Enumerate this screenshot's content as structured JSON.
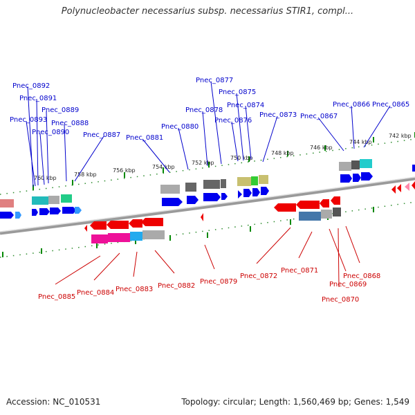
{
  "title": "Polynucleobacter necessarius subsp. necessarius STIR1, compl...",
  "footer": {
    "accession": "Accession: NC_010531",
    "summary": "Topology: circular; Length: 1,560,469 bp; Genes: 1,549"
  },
  "colors": {
    "top_label": "#0000cc",
    "bottom_label": "#cc0000",
    "ruler_tick": "#008800",
    "backbone": "#777777"
  },
  "scale_ticks": [
    "760 kbp",
    "758 kbp",
    "756 kbp",
    "754 kbp",
    "752 kbp",
    "750 kbp",
    "748 kbp",
    "746 kbp",
    "744 kbp",
    "742 kbp"
  ],
  "top_genes": [
    "Pnec_0892",
    "Pnec_0891",
    "Pnec_0893",
    "Pnec_0889",
    "Pnec_0890",
    "Pnec_0888",
    "Pnec_0887",
    "Pnec_0881",
    "Pnec_0880",
    "Pnec_0877",
    "Pnec_0878",
    "Pnec_0875",
    "Pnec_0874",
    "Pnec_0876",
    "Pnec_0873",
    "Pnec_0867",
    "Pnec_0866",
    "Pnec_0865"
  ],
  "bottom_genes": [
    "Pnec_0885",
    "Pnec_0884",
    "Pnec_0883",
    "Pnec_0882",
    "Pnec_0879",
    "Pnec_0872",
    "Pnec_0871",
    "Pnec_0868",
    "Pnec_0869",
    "Pnec_0870"
  ]
}
